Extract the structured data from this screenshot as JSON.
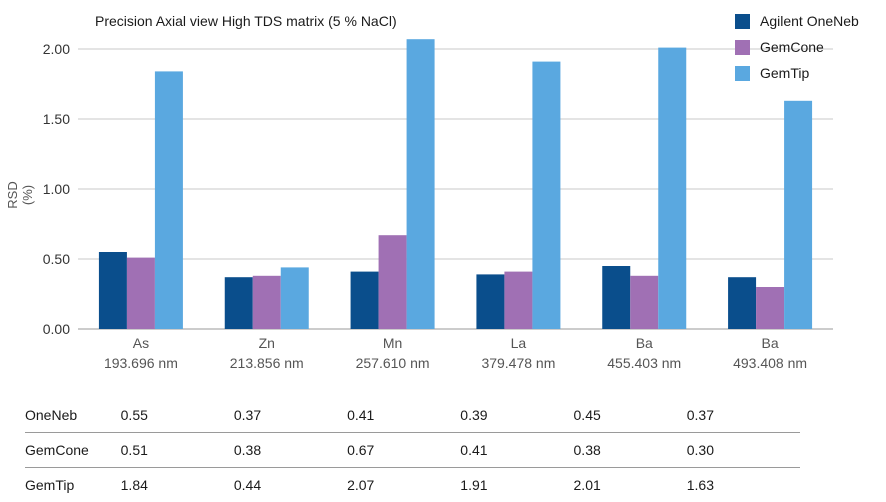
{
  "chart_data": {
    "type": "bar",
    "title": "Precision Axial view High TDS matrix (5 % NaCl)",
    "ylabel": "RSD (%)",
    "xlabel": "",
    "ylim": [
      0,
      2.0
    ],
    "yticks": [
      "0.00",
      "0.50",
      "1.00",
      "1.50",
      "2.00"
    ],
    "grid": true,
    "legend_position": "top-right",
    "categories": [
      {
        "element": "As",
        "wavelength": "193.696 nm"
      },
      {
        "element": "Zn",
        "wavelength": "213.856 nm"
      },
      {
        "element": "Mn",
        "wavelength": "257.610 nm"
      },
      {
        "element": "La",
        "wavelength": "379.478 nm"
      },
      {
        "element": "Ba",
        "wavelength": "455.403 nm"
      },
      {
        "element": "Ba",
        "wavelength": "493.408 nm"
      }
    ],
    "series": [
      {
        "name": "Agilent OneNeb",
        "color": "#0a4e8c",
        "values": [
          0.55,
          0.37,
          0.41,
          0.39,
          0.45,
          0.37
        ]
      },
      {
        "name": "GemCone",
        "color": "#a070b4",
        "values": [
          0.51,
          0.38,
          0.67,
          0.41,
          0.38,
          0.3
        ]
      },
      {
        "name": "GemTip",
        "color": "#5aa8e0",
        "values": [
          1.84,
          0.44,
          2.07,
          1.91,
          2.01,
          1.63
        ]
      }
    ]
  },
  "table": {
    "rows": [
      {
        "label": "OneNeb",
        "values": [
          "0.55",
          "0.37",
          "0.41",
          "0.39",
          "0.45",
          "0.37"
        ]
      },
      {
        "label": "GemCone",
        "values": [
          "0.51",
          "0.38",
          "0.67",
          "0.41",
          "0.38",
          "0.30"
        ]
      },
      {
        "label": "GemTip",
        "values": [
          "1.84",
          "0.44",
          "2.07",
          "1.91",
          "2.01",
          "1.63"
        ]
      }
    ]
  }
}
